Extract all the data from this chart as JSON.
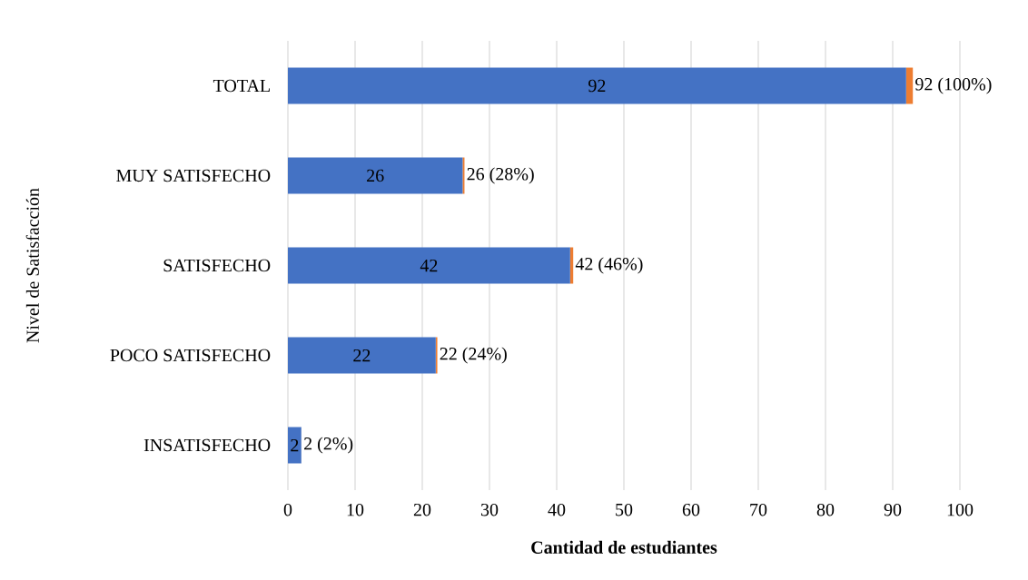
{
  "chart_data": {
    "type": "bar",
    "orientation": "horizontal",
    "stacked": true,
    "categories": [
      "TOTAL",
      "MUY SATISFECHO",
      "SATISFECHO",
      "POCO SATISFECHO",
      "INSATISFECHO"
    ],
    "series": [
      {
        "color": "#4472c4",
        "values": [
          92,
          26,
          42,
          22,
          2
        ],
        "value_labels": [
          "92",
          "26",
          "42",
          "22",
          "2"
        ]
      },
      {
        "color": "#ed7d31",
        "values": [
          1,
          0.28,
          0.46,
          0.24,
          0.02
        ],
        "value_labels": [
          "92 (100%)",
          "26 (28%)",
          "42 (46%)",
          "22 (24%)",
          "2 (2%)"
        ]
      }
    ],
    "xlabel": "Cantidad de estudiantes",
    "ylabel": "Nivel de Satisfacción",
    "xlim": [
      0,
      100
    ],
    "xticks": [
      0,
      10,
      20,
      30,
      40,
      50,
      60,
      70,
      80,
      90,
      100
    ],
    "grid": "x"
  }
}
